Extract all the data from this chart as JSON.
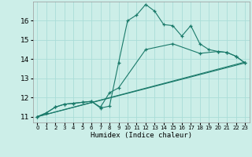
{
  "xlabel": "Humidex (Indice chaleur)",
  "background_color": "#cceee8",
  "line_color": "#1a7a6a",
  "grid_color": "#aaddd8",
  "xlim": [
    -0.5,
    23.5
  ],
  "ylim": [
    10.7,
    17.0
  ],
  "yticks": [
    11,
    12,
    13,
    14,
    15,
    16
  ],
  "xticks": [
    0,
    1,
    2,
    3,
    4,
    5,
    6,
    7,
    8,
    9,
    10,
    11,
    12,
    13,
    14,
    15,
    16,
    17,
    18,
    19,
    20,
    21,
    22,
    23
  ],
  "line1": {
    "x": [
      0,
      1,
      2,
      3,
      4,
      5,
      6,
      7,
      8,
      9,
      10,
      11,
      12,
      13,
      14,
      15,
      16,
      17,
      18,
      19,
      20,
      21,
      22,
      23
    ],
    "y": [
      11.0,
      11.2,
      11.5,
      11.65,
      11.7,
      11.75,
      11.8,
      11.45,
      11.55,
      13.8,
      16.0,
      16.3,
      16.85,
      16.5,
      15.8,
      15.75,
      15.2,
      15.75,
      14.8,
      14.5,
      14.4,
      14.35,
      14.15,
      13.8
    ]
  },
  "line2": {
    "x": [
      0,
      1,
      2,
      3,
      4,
      5,
      6,
      7,
      8,
      9,
      12,
      15,
      18,
      20,
      21,
      22,
      23
    ],
    "y": [
      11.0,
      11.2,
      11.5,
      11.65,
      11.7,
      11.75,
      11.8,
      11.5,
      12.25,
      12.5,
      14.5,
      14.8,
      14.3,
      14.4,
      14.35,
      14.15,
      13.8
    ]
  },
  "line3": {
    "x": [
      0,
      23
    ],
    "y": [
      11.0,
      13.8
    ]
  },
  "line4": {
    "x": [
      0,
      23
    ],
    "y": [
      11.0,
      13.85
    ]
  }
}
